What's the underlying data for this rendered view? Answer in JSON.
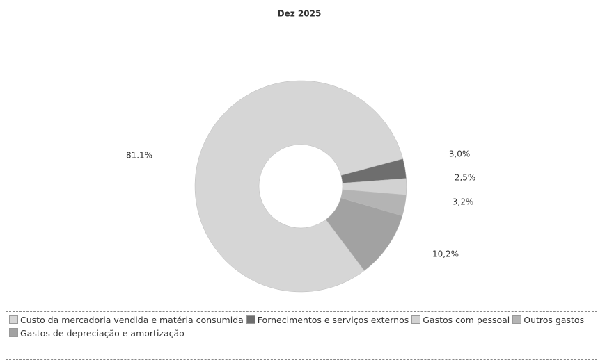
{
  "chart_data": {
    "type": "donut",
    "title": "Dez 2025",
    "categories": [
      "Custo da mercadoria vendida e matéria consumida",
      "Fornecimentos e serviços externos",
      "Gastos com pessoal",
      "Outros gastos",
      "Gastos de depreciação e amortização"
    ],
    "values": [
      81.1,
      3.0,
      2.5,
      3.2,
      10.2
    ],
    "value_labels": [
      "81.1%",
      "3,0%",
      "2,5%",
      "3,2%",
      "10,2%"
    ],
    "colors": [
      "#d6d6d6",
      "#6e6e6e",
      "#d2d2d2",
      "#b4b4b4",
      "#a2a2a2"
    ],
    "legend": "bottom"
  }
}
